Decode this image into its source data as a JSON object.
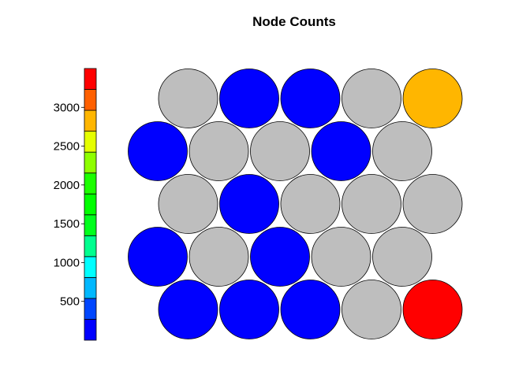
{
  "chart_data": {
    "type": "heatmap",
    "subtype": "som-hexagonal-node-counts",
    "title": "Node Counts",
    "grid": {
      "rows": 5,
      "cols": 5,
      "topology": "hexagonal"
    },
    "missing_color": "#bebebe",
    "rows": [
      {
        "row": 1,
        "offset": "shifted",
        "values": [
          null,
          30,
          30,
          null,
          2800
        ]
      },
      {
        "row": 2,
        "offset": "flush",
        "values": [
          30,
          null,
          null,
          30,
          null
        ]
      },
      {
        "row": 3,
        "offset": "shifted",
        "values": [
          null,
          30,
          null,
          null,
          null
        ]
      },
      {
        "row": 4,
        "offset": "flush",
        "values": [
          30,
          null,
          30,
          null,
          null
        ]
      },
      {
        "row": 5,
        "offset": "shifted",
        "values": [
          30,
          30,
          30,
          null,
          3450
        ]
      }
    ],
    "color_scale": {
      "min": 0,
      "max": 3500,
      "colors": [
        "#0000ff",
        "#0046ff",
        "#00b8ff",
        "#00ffff",
        "#00ff8f",
        "#00ff1d",
        "#00ff00",
        "#1cff00",
        "#8eff00",
        "#e5ff00",
        "#ffb600",
        "#ff6000",
        "#ff0000"
      ],
      "tick_labels": [
        "500",
        "1000",
        "1500",
        "2000",
        "2500",
        "3000"
      ],
      "tick_values": [
        500,
        1000,
        1500,
        2000,
        2500,
        3000
      ]
    }
  }
}
